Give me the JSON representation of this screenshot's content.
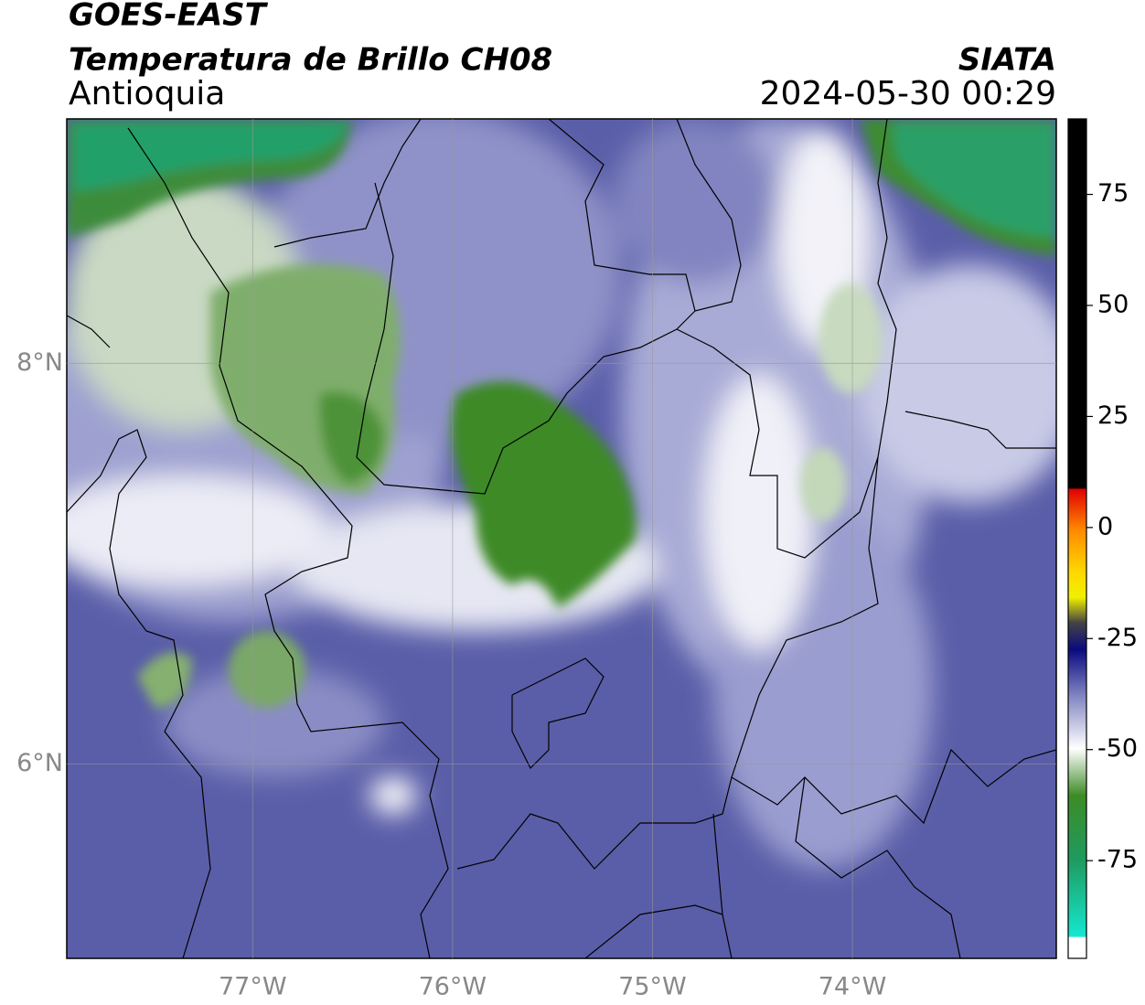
{
  "header": {
    "title": "GOES-EAST",
    "subtitle": "Temperatura de Brillo CH08",
    "region": "Antioquia",
    "source": "SIATA",
    "timestamp": "2024-05-30 00:29"
  },
  "chart_data": {
    "type": "map",
    "xlim": [
      -77.93,
      -72.98
    ],
    "ylim": [
      5.03,
      9.22
    ],
    "xticks": [
      {
        "value": -77,
        "label": "77°W"
      },
      {
        "value": -76,
        "label": "76°W"
      },
      {
        "value": -75,
        "label": "75°W"
      },
      {
        "value": -74,
        "label": "74°W"
      }
    ],
    "yticks": [
      {
        "value": 8,
        "label": "8°N"
      },
      {
        "value": 6,
        "label": "6°N"
      }
    ],
    "grid": true,
    "colorbar": {
      "lim": [
        -97,
        92
      ],
      "ticks": [
        75,
        50,
        25,
        0,
        -25,
        -50,
        -75
      ]
    }
  }
}
